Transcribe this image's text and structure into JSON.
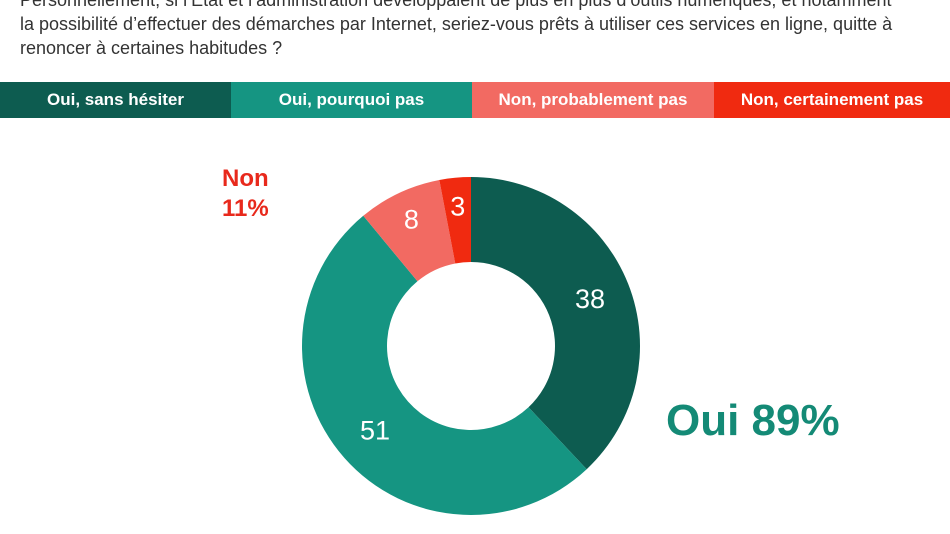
{
  "question": "Personnellement, si l’État et l’administration développaient de plus en plus d’outils numériques, et notamment\nla possibilité d’effectuer des démarches par Internet, seriez-vous prêts à utiliser ces services en ligne, quitte à\nrenoncer à certaines habitudes ?",
  "legend": [
    {
      "label": "Oui, sans hésiter",
      "color": "#0d5c50"
    },
    {
      "label": "Oui, pourquoi pas",
      "color": "#159582"
    },
    {
      "label": "Non, probablement pas",
      "color": "#f26a62"
    },
    {
      "label": "Non, certainement pas",
      "color": "#f02a10"
    }
  ],
  "summary": {
    "non_word": "Non",
    "non_value": "11%",
    "oui_total": "Oui 89%"
  },
  "chart_data": {
    "type": "pie",
    "donut": true,
    "categories": [
      "Oui, sans hésiter",
      "Oui, pourquoi pas",
      "Non, probablement pas",
      "Non, certainement pas"
    ],
    "values": [
      38,
      51,
      8,
      3
    ],
    "colors": [
      "#0d5c50",
      "#159582",
      "#f26a62",
      "#f02a10"
    ],
    "labels": [
      "38",
      "51",
      "8",
      "3"
    ]
  }
}
